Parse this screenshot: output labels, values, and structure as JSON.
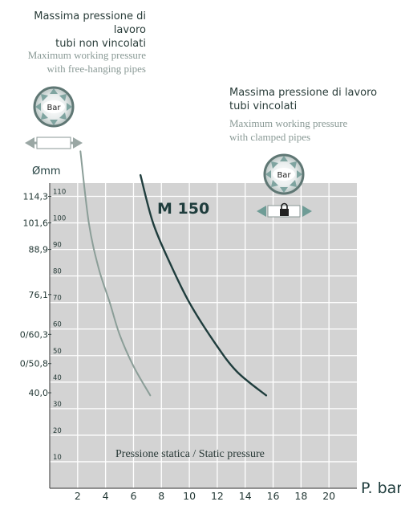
{
  "captions": {
    "free_it": [
      "Massima pressione di lavoro",
      "tubi non vincolati"
    ],
    "free_en": [
      "Maximum working pressure",
      "with free-hanging pipes"
    ],
    "clamped_it": [
      "Massima pressione di lavoro",
      "tubi vincolati"
    ],
    "clamped_en": [
      "Maximum working pressure",
      "with clamped pipes"
    ]
  },
  "icons": {
    "bar_label": "Bar",
    "free_icon": "arrow-pipe-icon",
    "clamped_icon": "padlock-pipe-icon"
  },
  "colors": {
    "plot_bg": "#d3d3d3",
    "grid": "#ffffff",
    "curve_free": "#8b9e98",
    "curve_clamped": "#1f3d3d",
    "text_dark": "#233835"
  },
  "chart_data": {
    "type": "line",
    "title": "",
    "model_label": "M 150",
    "xlabel": "P. bar",
    "ylabel": "Ømm",
    "annotation": "Pressione statica / Static pressure",
    "xlim": [
      0,
      22
    ],
    "ylim": [
      0,
      115
    ],
    "x_ticks": [
      "2",
      "4",
      "6",
      "8",
      "10",
      "12",
      "14",
      "16",
      "18",
      "20"
    ],
    "y_ticks": [
      "10",
      "20",
      "30",
      "40",
      "50",
      "60",
      "70",
      "80",
      "90",
      "100",
      "110"
    ],
    "diameter_labels": [
      {
        "label": "114,3",
        "y": 110
      },
      {
        "label": "101,6",
        "y": 100
      },
      {
        "label": "88,9",
        "y": 90
      },
      {
        "label": "76,1",
        "y": 73
      },
      {
        "label": "0/60,3",
        "y": 58
      },
      {
        "label": "0/50,8",
        "y": 47
      },
      {
        "label": "40,0",
        "y": 36
      }
    ],
    "grid": true,
    "series": [
      {
        "points": [
          [
            2.2,
            127
          ],
          [
            2.8,
            100
          ],
          [
            3.5,
            83
          ],
          [
            4.3,
            70
          ],
          [
            5.0,
            58
          ],
          [
            6.0,
            46
          ],
          [
            7.2,
            35
          ]
        ]
      },
      {
        "points": [
          [
            6.5,
            118
          ],
          [
            7.4,
            100
          ],
          [
            8.6,
            85
          ],
          [
            10.0,
            70
          ],
          [
            11.8,
            55
          ],
          [
            13.4,
            44
          ],
          [
            15.5,
            35
          ]
        ]
      }
    ]
  }
}
